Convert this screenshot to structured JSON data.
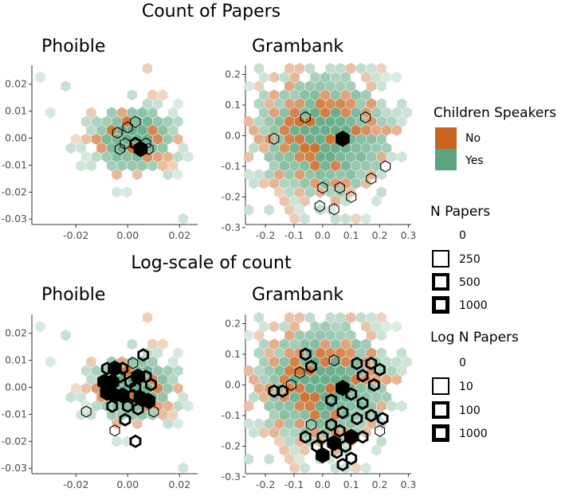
{
  "titles": {
    "top": "Count of Papers",
    "bottom": "Log-scale of count"
  },
  "colors": {
    "no": "#c8641f",
    "yes": "#5aa57f"
  },
  "chart_data": [
    {
      "type": "heatmap",
      "subtype": "hexbin",
      "title": "Phoible",
      "row": "Count of Papers",
      "xlim": [
        -0.037,
        0.027
      ],
      "ylim": [
        -0.032,
        0.027
      ],
      "xticks": [
        -0.02,
        0.0,
        0.02
      ],
      "xtick_labels": [
        "-0.02",
        "0.00",
        "0.02"
      ],
      "yticks": [
        -0.03,
        -0.02,
        -0.01,
        0.0,
        0.01,
        0.02
      ],
      "ytick_labels": [
        "-0.03",
        "-0.02",
        "-0.01",
        "0.00",
        "0.01",
        "0.02"
      ],
      "center": [
        0.002,
        0.0
      ],
      "spread": [
        0.009,
        0.007
      ],
      "outlined": [
        [
          0.005,
          -0.004,
          3
        ],
        [
          0.003,
          -0.002,
          2
        ],
        [
          -0.001,
          -0.002,
          1
        ],
        [
          0.008,
          -0.004,
          1
        ],
        [
          -0.004,
          0.002,
          1
        ],
        [
          0.0,
          0.004,
          1
        ],
        [
          0.003,
          0.006,
          1
        ],
        [
          -0.003,
          -0.004,
          1
        ],
        [
          0.007,
          -0.002,
          1
        ]
      ],
      "seed": 11
    },
    {
      "type": "heatmap",
      "subtype": "hexbin",
      "title": "Grambank",
      "row": "Count of Papers",
      "xlim": [
        -0.27,
        0.31
      ],
      "ylim": [
        -0.29,
        0.23
      ],
      "xticks": [
        -0.2,
        -0.1,
        0.0,
        0.1,
        0.2,
        0.3
      ],
      "xtick_labels": [
        "-0.2",
        "-0.1",
        "0.0",
        "0.1",
        "0.2",
        "0.3"
      ],
      "yticks": [
        -0.3,
        -0.2,
        -0.1,
        0.0,
        0.1,
        0.2
      ],
      "ytick_labels": [
        "-0.3",
        "-0.2",
        "-0.1",
        "0.0",
        "0.1",
        "0.2"
      ],
      "center": [
        0.0,
        0.0
      ],
      "spread": [
        0.13,
        0.11
      ],
      "outlined": [
        [
          0.07,
          -0.01,
          3
        ],
        [
          -0.06,
          0.06,
          1
        ],
        [
          0.15,
          0.06,
          1
        ],
        [
          -0.17,
          -0.01,
          1
        ],
        [
          0.0,
          -0.17,
          1
        ],
        [
          0.06,
          -0.17,
          1
        ],
        [
          0.1,
          -0.2,
          1
        ],
        [
          0.17,
          -0.14,
          1
        ],
        [
          0.22,
          -0.1,
          1
        ],
        [
          -0.01,
          -0.23,
          1
        ],
        [
          0.04,
          -0.24,
          1
        ]
      ],
      "seed": 23
    },
    {
      "type": "heatmap",
      "subtype": "hexbin",
      "title": "Phoible",
      "row": "Log-scale of count",
      "xlim": [
        -0.037,
        0.027
      ],
      "ylim": [
        -0.032,
        0.027
      ],
      "xticks": [
        -0.02,
        0.0,
        0.02
      ],
      "xtick_labels": [
        "-0.02",
        "0.00",
        "0.02"
      ],
      "yticks": [
        -0.03,
        -0.02,
        -0.01,
        0.0,
        0.01,
        0.02
      ],
      "ytick_labels": [
        "-0.03",
        "-0.02",
        "-0.01",
        "0.00",
        "0.01",
        "0.02"
      ],
      "center": [
        0.002,
        0.0
      ],
      "spread": [
        0.009,
        0.007
      ],
      "outlined": [
        [
          -0.008,
          0.007,
          2
        ],
        [
          -0.005,
          0.007,
          3
        ],
        [
          -0.002,
          0.007,
          2
        ],
        [
          0.002,
          0.009,
          1
        ],
        [
          0.006,
          0.012,
          2
        ],
        [
          -0.009,
          0.002,
          3
        ],
        [
          -0.006,
          0.002,
          3
        ],
        [
          -0.003,
          0.004,
          2
        ],
        [
          0.001,
          0.002,
          2
        ],
        [
          0.004,
          0.004,
          3
        ],
        [
          0.007,
          0.004,
          2
        ],
        [
          -0.008,
          -0.002,
          3
        ],
        [
          -0.005,
          -0.003,
          3
        ],
        [
          -0.002,
          -0.003,
          3
        ],
        [
          0.002,
          -0.003,
          2
        ],
        [
          0.005,
          -0.004,
          3
        ],
        [
          0.008,
          -0.005,
          3
        ],
        [
          -0.006,
          -0.007,
          2
        ],
        [
          0.0,
          -0.007,
          2
        ],
        [
          0.004,
          -0.008,
          2
        ],
        [
          0.01,
          -0.009,
          1
        ],
        [
          -0.001,
          -0.012,
          2
        ],
        [
          -0.005,
          -0.016,
          1
        ],
        [
          0.003,
          -0.02,
          2
        ],
        [
          -0.016,
          -0.009,
          1
        ],
        [
          0.009,
          0.001,
          2
        ],
        [
          0.003,
          0.0,
          2
        ]
      ],
      "seed": 11
    },
    {
      "type": "heatmap",
      "subtype": "hexbin",
      "title": "Grambank",
      "row": "Log-scale of count",
      "xlim": [
        -0.27,
        0.31
      ],
      "ylim": [
        -0.29,
        0.23
      ],
      "xticks": [
        -0.2,
        -0.1,
        0.0,
        0.1,
        0.2,
        0.3
      ],
      "xtick_labels": [
        "-0.2",
        "-0.1",
        "0.0",
        "0.1",
        "0.2",
        "0.3"
      ],
      "yticks": [
        -0.3,
        -0.2,
        -0.1,
        0.0,
        0.1,
        0.2
      ],
      "ytick_labels": [
        "-0.3",
        "-0.2",
        "-0.1",
        "0.0",
        "0.1",
        "0.2"
      ],
      "center": [
        0.0,
        0.0
      ],
      "spread": [
        0.13,
        0.11
      ],
      "outlined": [
        [
          0.07,
          -0.01,
          3
        ],
        [
          -0.06,
          0.1,
          2
        ],
        [
          -0.04,
          0.06,
          2
        ],
        [
          -0.08,
          0.04,
          1
        ],
        [
          0.04,
          0.08,
          1
        ],
        [
          0.12,
          0.07,
          2
        ],
        [
          0.17,
          0.07,
          2
        ],
        [
          0.2,
          0.05,
          2
        ],
        [
          0.14,
          0.03,
          2
        ],
        [
          0.18,
          0.0,
          2
        ],
        [
          -0.17,
          -0.02,
          2
        ],
        [
          -0.14,
          -0.02,
          2
        ],
        [
          -0.11,
          0.0,
          1
        ],
        [
          0.03,
          -0.05,
          2
        ],
        [
          0.1,
          -0.03,
          2
        ],
        [
          0.14,
          -0.06,
          2
        ],
        [
          0.07,
          -0.09,
          2
        ],
        [
          0.12,
          -0.11,
          2
        ],
        [
          0.17,
          -0.1,
          2
        ],
        [
          0.21,
          -0.11,
          2
        ],
        [
          0.03,
          -0.13,
          2
        ],
        [
          0.06,
          -0.15,
          2
        ],
        [
          0.1,
          -0.17,
          3
        ],
        [
          0.14,
          -0.17,
          2
        ],
        [
          0.0,
          -0.17,
          2
        ],
        [
          0.04,
          -0.19,
          3
        ],
        [
          0.08,
          -0.2,
          2
        ],
        [
          -0.04,
          -0.13,
          1
        ],
        [
          -0.06,
          -0.17,
          2
        ],
        [
          -0.02,
          -0.2,
          2
        ],
        [
          0.0,
          -0.23,
          3
        ],
        [
          0.05,
          -0.22,
          2
        ],
        [
          0.1,
          -0.24,
          2
        ],
        [
          0.07,
          -0.26,
          2
        ],
        [
          0.2,
          -0.15,
          1
        ]
      ],
      "seed": 23
    }
  ],
  "legend": {
    "children_title": "Children Speakers",
    "children_items": [
      {
        "label": "No",
        "color": "#c8641f"
      },
      {
        "label": "Yes",
        "color": "#5aa57f"
      }
    ],
    "npapers_title": "N Papers",
    "npapers_items": [
      {
        "label": "0",
        "level": 0
      },
      {
        "label": "250",
        "level": 1
      },
      {
        "label": "500",
        "level": 2
      },
      {
        "label": "1000",
        "level": 3
      }
    ],
    "lognpapers_title": "Log N Papers",
    "lognpapers_items": [
      {
        "label": "0",
        "level": 0
      },
      {
        "label": "10",
        "level": 1
      },
      {
        "label": "100",
        "level": 2
      },
      {
        "label": "1000",
        "level": 3
      }
    ]
  }
}
